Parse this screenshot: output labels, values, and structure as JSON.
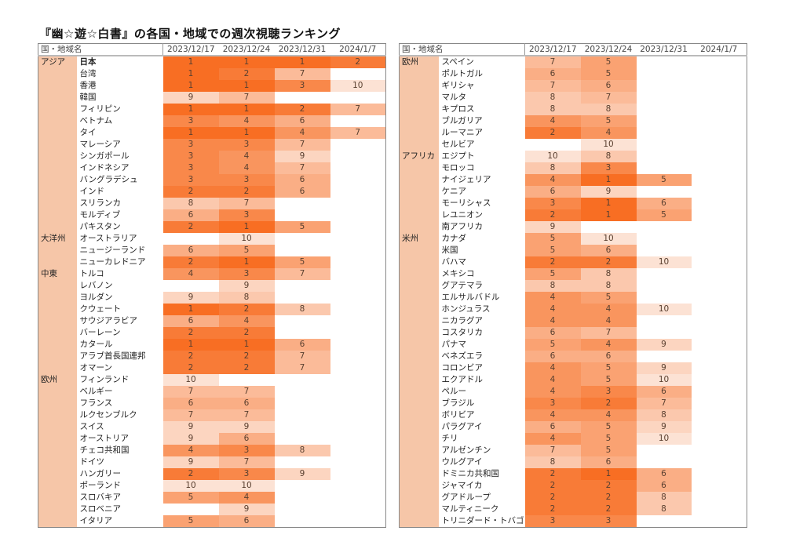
{
  "title": "『幽☆遊☆白書』の各国・地域での週次視聴ランキング",
  "header": {
    "name_label": "国・地域名",
    "dates": [
      "2023/12/17",
      "2023/12/24",
      "2023/12/31",
      "2024/1/7"
    ]
  },
  "colors": {
    "rank_1": "#f86e23",
    "rank_10": "#fce2d4",
    "region_bg": "#f6c6a8"
  },
  "left_table": [
    {
      "region": "アジア",
      "rows": [
        {
          "name": "日本",
          "ranks": [
            1,
            1,
            1,
            2
          ]
        },
        {
          "name": "台湾",
          "ranks": [
            1,
            2,
            7,
            null
          ]
        },
        {
          "name": "香港",
          "ranks": [
            1,
            1,
            3,
            10
          ]
        },
        {
          "name": "韓国",
          "ranks": [
            9,
            7,
            null,
            null
          ]
        },
        {
          "name": "フィリピン",
          "ranks": [
            1,
            1,
            2,
            7
          ]
        },
        {
          "name": "ベトナム",
          "ranks": [
            3,
            4,
            6,
            null
          ]
        },
        {
          "name": "タイ",
          "ranks": [
            1,
            1,
            4,
            7
          ]
        },
        {
          "name": "マレーシア",
          "ranks": [
            3,
            3,
            7,
            null
          ]
        },
        {
          "name": "シンガポール",
          "ranks": [
            3,
            4,
            9,
            null
          ]
        },
        {
          "name": "インドネシア",
          "ranks": [
            3,
            4,
            7,
            null
          ]
        },
        {
          "name": "バングラデシュ",
          "ranks": [
            3,
            3,
            6,
            null
          ]
        },
        {
          "name": "インド",
          "ranks": [
            2,
            2,
            6,
            null
          ]
        },
        {
          "name": "スリランカ",
          "ranks": [
            8,
            7,
            null,
            null
          ]
        },
        {
          "name": "モルディブ",
          "ranks": [
            6,
            3,
            null,
            null
          ]
        },
        {
          "name": "パキスタン",
          "ranks": [
            2,
            1,
            5,
            null
          ]
        }
      ]
    },
    {
      "region": "大洋州",
      "rows": [
        {
          "name": "オーストラリア",
          "ranks": [
            null,
            10,
            null,
            null
          ]
        },
        {
          "name": "ニュージーランド",
          "ranks": [
            6,
            5,
            null,
            null
          ]
        },
        {
          "name": "ニューカレドニア",
          "ranks": [
            2,
            1,
            5,
            null
          ]
        }
      ]
    },
    {
      "region": "中東",
      "rows": [
        {
          "name": "トルコ",
          "ranks": [
            4,
            3,
            7,
            null
          ]
        },
        {
          "name": "レバノン",
          "ranks": [
            null,
            9,
            null,
            null
          ]
        },
        {
          "name": "ヨルダン",
          "ranks": [
            9,
            8,
            null,
            null
          ]
        },
        {
          "name": "クウェート",
          "ranks": [
            1,
            2,
            8,
            null
          ]
        },
        {
          "name": "サウジアラビア",
          "ranks": [
            6,
            4,
            null,
            null
          ]
        },
        {
          "name": "バーレーン",
          "ranks": [
            2,
            2,
            null,
            null
          ]
        },
        {
          "name": "カタール",
          "ranks": [
            1,
            1,
            6,
            null
          ]
        },
        {
          "name": "アラブ首長国連邦",
          "ranks": [
            2,
            2,
            7,
            null
          ]
        },
        {
          "name": "オマーン",
          "ranks": [
            2,
            2,
            7,
            null
          ]
        }
      ]
    },
    {
      "region": "欧州",
      "rows": [
        {
          "name": "フィンランド",
          "ranks": [
            10,
            null,
            null,
            null
          ]
        },
        {
          "name": "ベルギー",
          "ranks": [
            7,
            7,
            null,
            null
          ]
        },
        {
          "name": "フランス",
          "ranks": [
            6,
            6,
            null,
            null
          ]
        },
        {
          "name": "ルクセンブルク",
          "ranks": [
            7,
            7,
            null,
            null
          ]
        },
        {
          "name": "スイス",
          "ranks": [
            9,
            9,
            null,
            null
          ]
        },
        {
          "name": "オーストリア",
          "ranks": [
            9,
            6,
            null,
            null
          ]
        },
        {
          "name": "チェコ共和国",
          "ranks": [
            4,
            3,
            8,
            null
          ]
        },
        {
          "name": "ドイツ",
          "ranks": [
            9,
            7,
            null,
            null
          ]
        },
        {
          "name": "ハンガリー",
          "ranks": [
            2,
            3,
            9,
            null
          ]
        },
        {
          "name": "ポーランド",
          "ranks": [
            10,
            10,
            null,
            null
          ]
        },
        {
          "name": "スロバキア",
          "ranks": [
            5,
            4,
            null,
            null
          ]
        },
        {
          "name": "スロベニア",
          "ranks": [
            null,
            9,
            null,
            null
          ]
        },
        {
          "name": "イタリア",
          "ranks": [
            5,
            6,
            null,
            null
          ]
        }
      ]
    }
  ],
  "right_table": [
    {
      "region": "欧州",
      "rows": [
        {
          "name": "スペイン",
          "ranks": [
            7,
            5,
            null,
            null
          ]
        },
        {
          "name": "ポルトガル",
          "ranks": [
            6,
            5,
            null,
            null
          ]
        },
        {
          "name": "ギリシャ",
          "ranks": [
            7,
            6,
            null,
            null
          ]
        },
        {
          "name": "マルタ",
          "ranks": [
            8,
            7,
            null,
            null
          ]
        },
        {
          "name": "キプロス",
          "ranks": [
            8,
            8,
            null,
            null
          ]
        },
        {
          "name": "ブルガリア",
          "ranks": [
            4,
            5,
            null,
            null
          ]
        },
        {
          "name": "ルーマニア",
          "ranks": [
            2,
            4,
            null,
            null
          ]
        },
        {
          "name": "セルビア",
          "ranks": [
            null,
            10,
            null,
            null
          ]
        }
      ]
    },
    {
      "region": "アフリカ",
      "rows": [
        {
          "name": "エジプト",
          "ranks": [
            10,
            8,
            null,
            null
          ]
        },
        {
          "name": "モロッコ",
          "ranks": [
            8,
            3,
            null,
            null
          ]
        },
        {
          "name": "ナイジェリア",
          "ranks": [
            4,
            1,
            5,
            null
          ]
        },
        {
          "name": "ケニア",
          "ranks": [
            6,
            9,
            null,
            null
          ]
        },
        {
          "name": "モーリシャス",
          "ranks": [
            3,
            1,
            6,
            null
          ]
        },
        {
          "name": "レユニオン",
          "ranks": [
            2,
            1,
            5,
            null
          ]
        },
        {
          "name": "南アフリカ",
          "ranks": [
            9,
            null,
            null,
            null
          ]
        }
      ]
    },
    {
      "region": "米州",
      "rows": [
        {
          "name": "カナダ",
          "ranks": [
            5,
            10,
            null,
            null
          ]
        },
        {
          "name": "米国",
          "ranks": [
            5,
            6,
            null,
            null
          ]
        },
        {
          "name": "バハマ",
          "ranks": [
            2,
            2,
            10,
            null
          ]
        },
        {
          "name": "メキシコ",
          "ranks": [
            5,
            8,
            null,
            null
          ]
        },
        {
          "name": "グアテマラ",
          "ranks": [
            8,
            8,
            null,
            null
          ]
        },
        {
          "name": "エルサルバドル",
          "ranks": [
            4,
            5,
            null,
            null
          ]
        },
        {
          "name": "ホンジュラス",
          "ranks": [
            4,
            4,
            10,
            null
          ]
        },
        {
          "name": "ニカラグア",
          "ranks": [
            4,
            4,
            null,
            null
          ]
        },
        {
          "name": "コスタリカ",
          "ranks": [
            6,
            7,
            null,
            null
          ]
        },
        {
          "name": "パナマ",
          "ranks": [
            5,
            4,
            9,
            null
          ]
        },
        {
          "name": "ベネズエラ",
          "ranks": [
            6,
            6,
            null,
            null
          ]
        },
        {
          "name": "コロンビア",
          "ranks": [
            4,
            5,
            9,
            null
          ]
        },
        {
          "name": "エクアドル",
          "ranks": [
            4,
            5,
            10,
            null
          ]
        },
        {
          "name": "ペルー",
          "ranks": [
            4,
            3,
            6,
            null
          ]
        },
        {
          "name": "ブラジル",
          "ranks": [
            3,
            2,
            7,
            null
          ]
        },
        {
          "name": "ボリビア",
          "ranks": [
            4,
            4,
            8,
            null
          ]
        },
        {
          "name": "パラグアイ",
          "ranks": [
            6,
            5,
            9,
            null
          ]
        },
        {
          "name": "チリ",
          "ranks": [
            4,
            5,
            10,
            null
          ]
        },
        {
          "name": "アルゼンチン",
          "ranks": [
            7,
            5,
            null,
            null
          ]
        },
        {
          "name": "ウルグアイ",
          "ranks": [
            8,
            6,
            null,
            null
          ]
        },
        {
          "name": "ドミニカ共和国",
          "ranks": [
            2,
            1,
            6,
            null
          ]
        },
        {
          "name": "ジャマイカ",
          "ranks": [
            2,
            2,
            6,
            null
          ]
        },
        {
          "name": "グアドループ",
          "ranks": [
            2,
            2,
            8,
            null
          ]
        },
        {
          "name": "マルティニーク",
          "ranks": [
            2,
            2,
            8,
            null
          ]
        },
        {
          "name": "トリニダード・トバゴ",
          "ranks": [
            3,
            3,
            null,
            null
          ]
        }
      ]
    }
  ]
}
